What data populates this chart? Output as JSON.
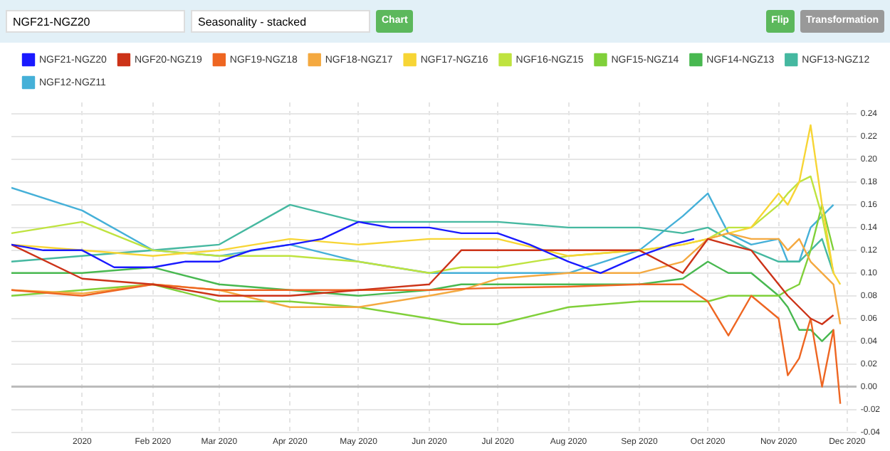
{
  "chart_data": {
    "type": "line",
    "annotations": [
      "NGF21-NGZ20",
      "Seasonality - stacked",
      "Chart",
      "Flip",
      "Transformation"
    ],
    "x": [
      "2019-12-01",
      "2020-01-01",
      "2020-02-01",
      "2020-03-01",
      "2020-04-01",
      "2020-05-01",
      "2020-06-01",
      "2020-06-15",
      "2020-07-01",
      "2020-08-01",
      "2020-09-01",
      "2020-09-20",
      "2020-10-01",
      "2020-10-10",
      "2020-10-20",
      "2020-11-01",
      "2020-11-05",
      "2020-11-10",
      "2020-11-15",
      "2020-11-20",
      "2020-11-25",
      "2020-11-28"
    ],
    "series": [
      {
        "name": "NGF21-NGZ20",
        "color": "#1a1aff",
        "x": [
          "2019-12-01",
          "2019-12-15",
          "2020-01-01",
          "2020-01-15",
          "2020-02-01",
          "2020-02-15",
          "2020-03-01",
          "2020-03-15",
          "2020-04-01",
          "2020-04-15",
          "2020-05-01",
          "2020-05-15",
          "2020-06-01",
          "2020-06-15",
          "2020-07-01",
          "2020-07-15",
          "2020-08-01",
          "2020-08-15",
          "2020-09-01",
          "2020-09-15",
          "2020-09-25"
        ],
        "values": [
          0.125,
          0.12,
          0.12,
          0.105,
          0.105,
          0.11,
          0.11,
          0.12,
          0.125,
          0.13,
          0.145,
          0.14,
          0.14,
          0.135,
          0.135,
          0.125,
          0.11,
          0.1,
          0.115,
          0.125,
          0.13
        ]
      },
      {
        "name": "NGF20-NGZ19",
        "color": "#cc3318",
        "values": [
          0.125,
          0.095,
          0.09,
          0.08,
          0.08,
          0.085,
          0.09,
          0.12,
          0.12,
          0.12,
          0.12,
          0.1,
          0.13,
          0.125,
          0.12,
          0.09,
          0.08,
          0.07,
          0.06,
          0.055,
          0.063,
          null
        ]
      },
      {
        "name": "NGF19-NGZ18",
        "color": "#ee6622",
        "values": [
          0.085,
          0.08,
          0.09,
          0.085,
          0.085,
          0.085,
          0.085,
          0.086,
          0.087,
          0.088,
          0.09,
          0.09,
          0.075,
          0.045,
          0.08,
          0.06,
          0.01,
          0.025,
          0.06,
          0.0,
          0.05,
          -0.015
        ]
      },
      {
        "name": "NGF18-NGZ17",
        "color": "#f4a940",
        "values": [
          0.085,
          0.082,
          0.09,
          0.085,
          0.07,
          0.07,
          0.08,
          0.085,
          0.095,
          0.1,
          0.1,
          0.11,
          0.13,
          0.135,
          0.13,
          0.13,
          0.12,
          0.13,
          0.11,
          0.1,
          0.09,
          0.055
        ]
      },
      {
        "name": "NGF17-NGZ16",
        "color": "#f7d535",
        "values": [
          0.125,
          0.12,
          0.115,
          0.12,
          0.13,
          0.125,
          0.13,
          0.13,
          0.13,
          0.115,
          0.12,
          0.125,
          0.13,
          0.135,
          0.14,
          0.17,
          0.16,
          0.18,
          0.23,
          0.16,
          0.1,
          0.09
        ]
      },
      {
        "name": "NGF16-NGZ15",
        "color": "#bfe33f",
        "values": [
          0.135,
          0.145,
          0.12,
          0.115,
          0.115,
          0.11,
          0.1,
          0.105,
          0.105,
          0.115,
          0.12,
          0.125,
          0.13,
          0.14,
          0.14,
          0.16,
          0.17,
          0.18,
          0.185,
          0.15,
          0.1,
          null
        ]
      },
      {
        "name": "NGF15-NGZ14",
        "color": "#80d03a",
        "values": [
          0.08,
          0.085,
          0.09,
          0.075,
          0.075,
          0.07,
          0.06,
          0.055,
          0.055,
          0.07,
          0.075,
          0.075,
          0.075,
          0.08,
          0.08,
          0.08,
          0.085,
          0.09,
          0.12,
          0.16,
          0.12,
          null
        ]
      },
      {
        "name": "NGF14-NGZ13",
        "color": "#48b850",
        "values": [
          0.1,
          0.1,
          0.105,
          0.09,
          0.085,
          0.08,
          0.085,
          0.09,
          0.09,
          0.09,
          0.09,
          0.095,
          0.11,
          0.1,
          0.1,
          0.08,
          0.07,
          0.05,
          0.05,
          0.04,
          0.05,
          null
        ]
      },
      {
        "name": "NGF13-NGZ12",
        "color": "#45b8a0",
        "values": [
          0.11,
          0.115,
          0.12,
          0.125,
          0.16,
          0.145,
          0.145,
          0.145,
          0.145,
          0.14,
          0.14,
          0.135,
          0.14,
          0.13,
          0.12,
          0.11,
          0.11,
          0.11,
          0.12,
          0.13,
          0.1,
          null
        ]
      },
      {
        "name": "NGF12-NGZ11",
        "color": "#45b0d8",
        "values": [
          0.175,
          0.155,
          0.12,
          0.115,
          0.125,
          0.11,
          0.1,
          0.1,
          0.1,
          0.1,
          0.12,
          0.15,
          0.17,
          0.135,
          0.125,
          0.13,
          0.11,
          0.11,
          0.14,
          0.15,
          0.16,
          null
        ]
      }
    ],
    "xlim": [
      "2019-12-01",
      "2020-12-05"
    ],
    "xticks": [
      {
        "value": "2020-01-01",
        "label": "2020"
      },
      {
        "value": "2020-02-01",
        "label": "Feb 2020"
      },
      {
        "value": "2020-03-01",
        "label": "Mar 2020"
      },
      {
        "value": "2020-04-01",
        "label": "Apr 2020"
      },
      {
        "value": "2020-05-01",
        "label": "May 2020"
      },
      {
        "value": "2020-06-01",
        "label": "Jun 2020"
      },
      {
        "value": "2020-07-01",
        "label": "Jul 2020"
      },
      {
        "value": "2020-08-01",
        "label": "Aug 2020"
      },
      {
        "value": "2020-09-01",
        "label": "Sep 2020"
      },
      {
        "value": "2020-10-01",
        "label": "Oct 2020"
      },
      {
        "value": "2020-11-01",
        "label": "Nov 2020"
      },
      {
        "value": "2020-12-01",
        "label": "Dec 2020"
      }
    ],
    "ylim": [
      -0.04,
      0.25
    ],
    "yticks": [
      {
        "value": -0.04,
        "label": "-0.04"
      },
      {
        "value": -0.02,
        "label": "-0.02"
      },
      {
        "value": 0,
        "label": "0.00"
      },
      {
        "value": 0.02,
        "label": "0.02"
      },
      {
        "value": 0.04,
        "label": "0.04"
      },
      {
        "value": 0.06,
        "label": "0.06"
      },
      {
        "value": 0.08,
        "label": "0.08"
      },
      {
        "value": 0.1,
        "label": "0.10"
      },
      {
        "value": 0.12,
        "label": "0.12"
      },
      {
        "value": 0.14,
        "label": "0.14"
      },
      {
        "value": 0.16,
        "label": "0.16"
      },
      {
        "value": 0.18,
        "label": "0.18"
      },
      {
        "value": 0.2,
        "label": "0.20"
      },
      {
        "value": 0.22,
        "label": "0.22"
      },
      {
        "value": 0.24,
        "label": "0.24"
      }
    ],
    "grid": true,
    "legend": "top"
  }
}
